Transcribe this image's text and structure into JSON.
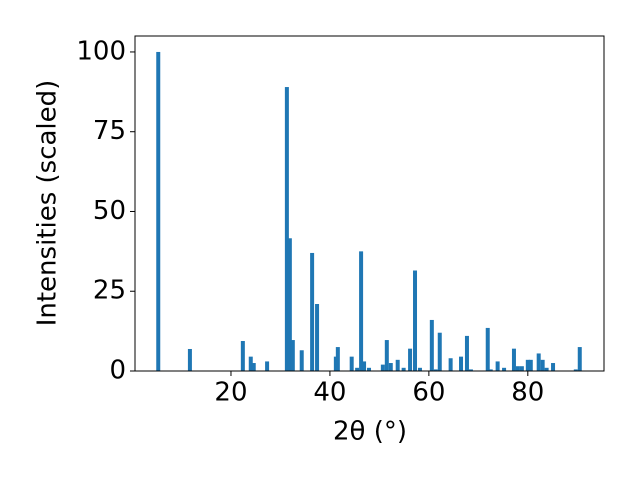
{
  "chart_data": {
    "type": "bar",
    "xlabel": "2θ (°)",
    "ylabel": "Intensities (scaled)",
    "x": [
      5.3,
      11.7,
      22.4,
      24.0,
      24.6,
      27.3,
      31.3,
      31.9,
      32.5,
      34.3,
      36.4,
      37.4,
      41.2,
      41.6,
      44.4,
      45.5,
      46.3,
      46.9,
      47.9,
      50.7,
      51.5,
      52.3,
      53.7,
      54.9,
      56.2,
      57.2,
      58.2,
      60.6,
      61.4,
      62.2,
      64.4,
      66.5,
      67.7,
      68.5,
      71.9,
      72.5,
      73.9,
      75.2,
      77.2,
      78.0,
      78.8,
      80.0,
      80.6,
      82.2,
      83.0,
      83.8,
      85.1,
      89.7,
      90.5
    ],
    "values": [
      100,
      6.9,
      9.4,
      4.5,
      2.5,
      3,
      89,
      41.6,
      9.7,
      6.5,
      37,
      21,
      4.5,
      7.5,
      4.5,
      1,
      37.5,
      3,
      1,
      2,
      9.7,
      2.5,
      3.5,
      1,
      7,
      31.5,
      1,
      16,
      0.5,
      12,
      4,
      4.5,
      11,
      0.5,
      13.5,
      0.5,
      3,
      1,
      7,
      1.5,
      1.5,
      3.5,
      3.5,
      5.5,
      3.5,
      1,
      2.5,
      0.5,
      7.5
    ],
    "color": "#1f77b4",
    "xlim": [
      0.6,
      95.4
    ],
    "xticks": [
      20,
      40,
      60,
      80
    ],
    "ylim": [
      0,
      105
    ],
    "yticks": [
      0,
      25,
      50,
      75,
      100
    ]
  }
}
